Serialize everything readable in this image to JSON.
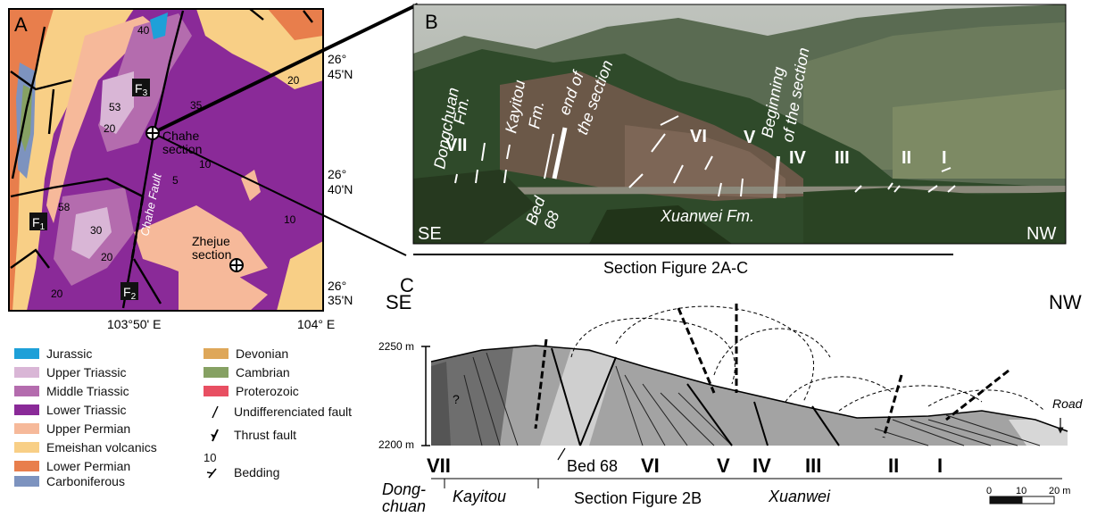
{
  "panel_labels": {
    "a": "A",
    "b": "B",
    "c": "C"
  },
  "map": {
    "lat_labels": [
      {
        "deg": "26°",
        "min": "45'N"
      },
      {
        "deg": "26°",
        "min": "40'N"
      },
      {
        "deg": "26°",
        "min": "35'N"
      }
    ],
    "lon_labels": [
      "103°50' E",
      "104° E"
    ],
    "fault_labels": [
      "F",
      "F",
      "F"
    ],
    "fault_subscripts": [
      "1",
      "2",
      "3"
    ],
    "sites": [
      {
        "line1": "Chahe",
        "line2": "section"
      },
      {
        "line1": "Zhejue",
        "line2": "section"
      }
    ],
    "fault_name": "Chahe Fault",
    "dips": [
      "40",
      "53",
      "20",
      "35",
      "20",
      "10",
      "5",
      "58",
      "30",
      "20",
      "10",
      "20"
    ]
  },
  "legend": {
    "units": [
      {
        "name": "Jurassic",
        "color": "#1ea0d8"
      },
      {
        "name": "Upper Triassic",
        "color": "#d9b6d6"
      },
      {
        "name": "Middle Triassic",
        "color": "#b46cae"
      },
      {
        "name": "Lower Triassic",
        "color": "#8a2a98"
      },
      {
        "name": "Upper Permian",
        "color": "#f6b99a"
      },
      {
        "name": "Emeishan volcanics",
        "color": "#f8cf86"
      },
      {
        "name": "Lower Permian",
        "color": "#e87e4c"
      },
      {
        "name": "Carboniferous",
        "color": "#7d93bf"
      },
      {
        "name": "Devonian",
        "color": "#dea759"
      },
      {
        "name": "Cambrian",
        "color": "#86a163"
      },
      {
        "name": "Proterozoic",
        "color": "#e84f62"
      }
    ],
    "symbols": [
      {
        "name": "Undifferenciated fault",
        "icon": "fault-line-icon"
      },
      {
        "name": "Thrust fault",
        "icon": "thrust-fault-icon"
      },
      {
        "name": "Bedding",
        "icon": "bedding-icon",
        "value": "10"
      }
    ]
  },
  "photo": {
    "formations": {
      "dongchuan": [
        "Dongchuan",
        "Fm."
      ],
      "kayitou": [
        "Kayitou",
        "Fm."
      ],
      "xuanwei": "Xuanwei Fm."
    },
    "end_label": [
      "end of",
      "the section"
    ],
    "beginning_label": [
      "Beginning",
      "of the section"
    ],
    "bed_label": [
      "Bed",
      "68"
    ],
    "units": [
      "VII",
      "VI",
      "V",
      "IV",
      "III",
      "II",
      "I"
    ],
    "corners": {
      "left": "SE",
      "right": "NW"
    }
  },
  "section_caption": "Section Figure 2A-C",
  "cross_section": {
    "corners": {
      "left": "SE",
      "right": "NW"
    },
    "elevations": [
      "2250 m",
      "2200 m"
    ],
    "question": "?",
    "road": "Road",
    "bed_label": "Bed 68",
    "units": [
      "VII",
      "VI",
      "V",
      "IV",
      "III",
      "II",
      "I"
    ],
    "formations": {
      "dong1": "Dong-",
      "dong2": "chuan",
      "kayitou": "Kayitou",
      "section": "Section Figure 2B",
      "xuanwei": "Xuanwei"
    },
    "scale": [
      "0",
      "10",
      "20 m"
    ]
  },
  "colors": {
    "ink": "#111111",
    "sky": "#c9ccc6",
    "forest": "#2f4a2a"
  }
}
